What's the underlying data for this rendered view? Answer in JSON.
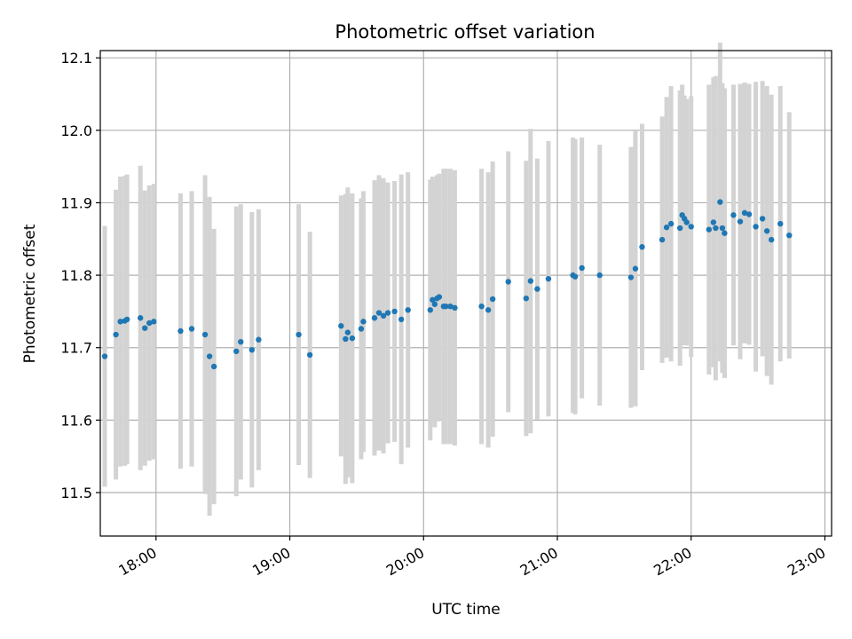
{
  "chart_data": {
    "type": "scatter",
    "title": "Photometric offset variation",
    "xlabel": "UTC time",
    "ylabel": "Photometric offset",
    "grid": true,
    "xlim": [
      "17:35",
      "23:03"
    ],
    "ylim": [
      11.44,
      12.11
    ],
    "x_ticks": [
      "18:00",
      "19:00",
      "20:00",
      "21:00",
      "22:00",
      "23:00"
    ],
    "y_ticks": [
      "11.5",
      "11.6",
      "11.7",
      "11.8",
      "11.9",
      "12.0",
      "12.1"
    ],
    "colors": {
      "point": "#1f77b4",
      "errorbar": "#d3d3d3",
      "grid": "#b0b0b0"
    },
    "series": [
      {
        "x": [
          "17:37",
          "17:42",
          "17:44",
          "17:46",
          "17:47",
          "17:53",
          "17:55",
          "17:57",
          "17:59",
          "18:11",
          "18:16",
          "18:22",
          "18:24",
          "18:26",
          "18:36",
          "18:38",
          "18:43",
          "18:46",
          "19:04",
          "19:09",
          "19:23",
          "19:25",
          "19:26",
          "19:28",
          "19:32",
          "19:33",
          "19:38",
          "19:40",
          "19:42",
          "19:44",
          "19:47",
          "19:50",
          "19:53",
          "20:03",
          "20:04",
          "20:05",
          "20:06",
          "20:07",
          "20:09",
          "20:10",
          "20:12",
          "20:14",
          "20:26",
          "20:29",
          "20:31",
          "20:38",
          "20:46",
          "20:48",
          "20:51",
          "20:56",
          "21:07",
          "21:08",
          "21:11",
          "21:19",
          "21:33",
          "21:35",
          "21:38",
          "21:47",
          "21:49",
          "21:51",
          "21:55",
          "21:56",
          "21:57",
          "21:58",
          "22:00",
          "22:08",
          "22:10",
          "22:11",
          "22:13",
          "22:14",
          "22:15",
          "22:19",
          "22:22",
          "22:24",
          "22:26",
          "22:29",
          "22:32",
          "22:34",
          "22:36",
          "22:40",
          "22:44"
        ],
        "y": [
          11.688,
          11.718,
          11.736,
          11.737,
          11.739,
          11.741,
          11.727,
          11.734,
          11.736,
          11.723,
          11.726,
          11.718,
          11.688,
          11.674,
          11.695,
          11.708,
          11.697,
          11.711,
          11.718,
          11.69,
          11.73,
          11.712,
          11.721,
          11.713,
          11.726,
          11.736,
          11.741,
          11.748,
          11.744,
          11.748,
          11.75,
          11.739,
          11.752,
          11.752,
          11.766,
          11.76,
          11.768,
          11.77,
          11.757,
          11.757,
          11.757,
          11.755,
          11.757,
          11.752,
          11.767,
          11.791,
          11.768,
          11.792,
          11.781,
          11.795,
          11.8,
          11.798,
          11.81,
          11.8,
          11.797,
          11.809,
          11.839,
          11.849,
          11.866,
          11.871,
          11.865,
          11.883,
          11.878,
          11.873,
          11.867,
          11.863,
          11.873,
          11.865,
          11.901,
          11.865,
          11.858,
          11.883,
          11.874,
          11.886,
          11.884,
          11.867,
          11.878,
          11.861,
          11.849,
          11.871,
          11.855
        ],
        "err": [
          0.18,
          0.2,
          0.2,
          0.2,
          0.2,
          0.21,
          0.19,
          0.19,
          0.19,
          0.19,
          0.19,
          0.22,
          0.22,
          0.19,
          0.2,
          0.19,
          0.19,
          0.18,
          0.18,
          0.17,
          0.18,
          0.2,
          0.2,
          0.2,
          0.18,
          0.18,
          0.19,
          0.19,
          0.19,
          0.18,
          0.18,
          0.2,
          0.19,
          0.18,
          0.17,
          0.17,
          0.17,
          0.17,
          0.19,
          0.19,
          0.19,
          0.19,
          0.19,
          0.19,
          0.19,
          0.18,
          0.19,
          0.21,
          0.18,
          0.19,
          0.19,
          0.19,
          0.18,
          0.18,
          0.18,
          0.19,
          0.17,
          0.17,
          0.18,
          0.19,
          0.19,
          0.18,
          0.17,
          0.17,
          0.18,
          0.2,
          0.2,
          0.21,
          0.22,
          0.2,
          0.2,
          0.18,
          0.19,
          0.18,
          0.18,
          0.2,
          0.19,
          0.2,
          0.2,
          0.19,
          0.17
        ]
      }
    ]
  }
}
